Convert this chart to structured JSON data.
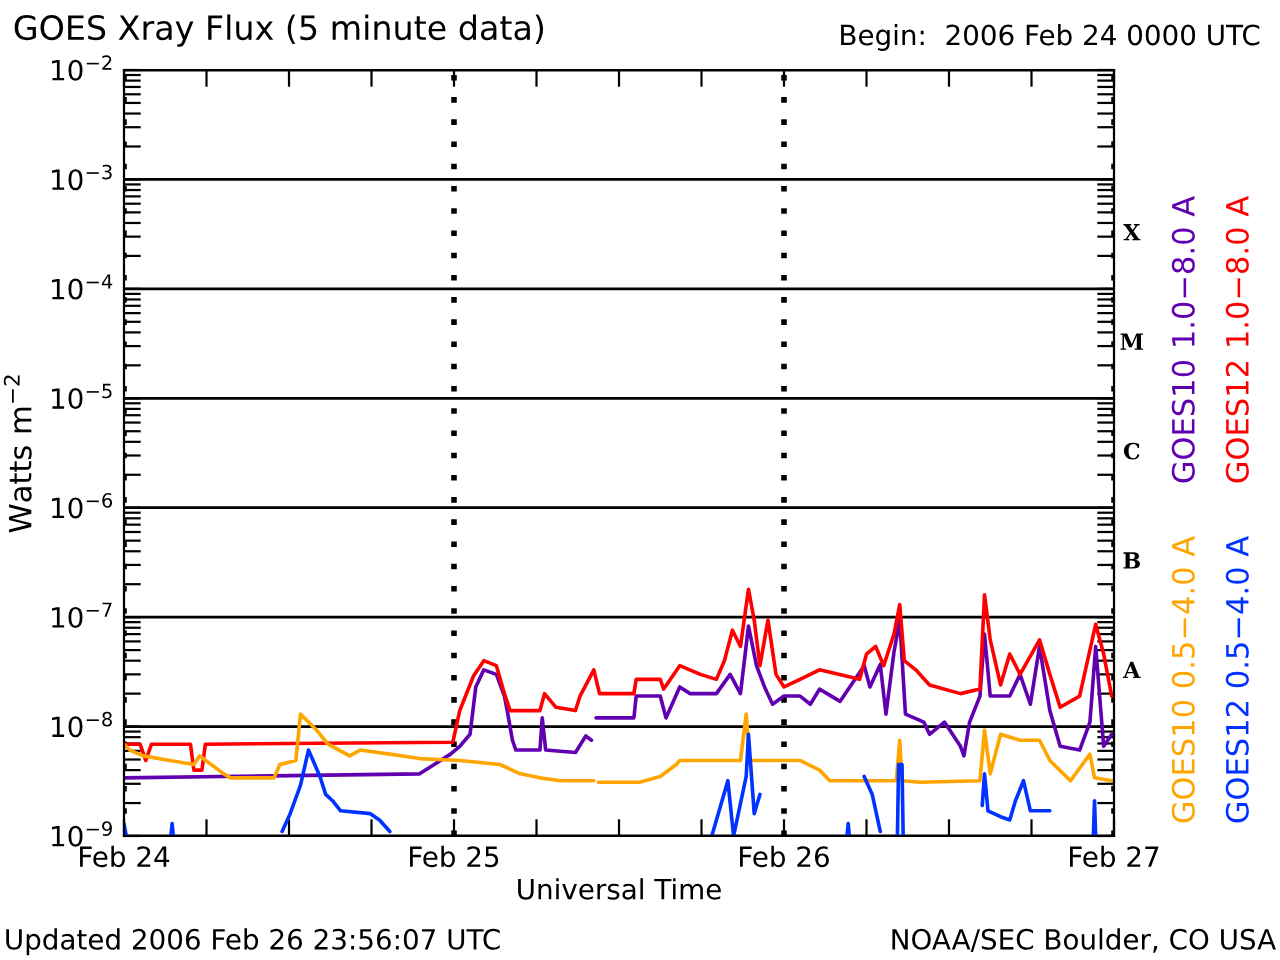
{
  "chart_data": {
    "type": "line",
    "title": "GOES Xray Flux (5 minute data)",
    "subtitle": "Begin:  2006 Feb 24 0000 UTC",
    "xlabel": "Universal Time",
    "ylabel": "Watts m$^{−2}$",
    "annotations": [
      "Updated 2006 Feb 26 23:56:07 UTC",
      "NOAA/SEC Boulder, CO USA",
      "A",
      "B",
      "C",
      "M",
      "X"
    ],
    "log": true,
    "grid": true,
    "legend": "right",
    "line_style": "solid",
    "marker": "none",
    "xlim": [
      "2006-02-24T00:00",
      "2006-02-27T00:00"
    ],
    "xticks": [
      {
        "value": "2006-02-24T00:00",
        "label": "Feb 24"
      },
      {
        "value": "2006-02-24T06:00",
        "label": null
      },
      {
        "value": "2006-02-24T12:00",
        "label": null
      },
      {
        "value": "2006-02-24T18:00",
        "label": null
      },
      {
        "value": "2006-02-25T00:00",
        "label": "Feb 25"
      },
      {
        "value": "2006-02-25T06:00",
        "label": null
      },
      {
        "value": "2006-02-25T12:00",
        "label": null
      },
      {
        "value": "2006-02-25T18:00",
        "label": null
      },
      {
        "value": "2006-02-26T00:00",
        "label": "Feb 26"
      },
      {
        "value": "2006-02-26T06:00",
        "label": null
      },
      {
        "value": "2006-02-26T12:00",
        "label": null
      },
      {
        "value": "2006-02-26T18:00",
        "label": null
      },
      {
        "value": "2006-02-27T00:00",
        "label": "Feb 27"
      }
    ],
    "ylim": [
      1e-09,
      0.01
    ],
    "yticks": [
      {
        "value": 1e-09,
        "label": "10$^{−9}$"
      },
      {
        "value": 1e-08,
        "label": "10$^{−8}$"
      },
      {
        "value": 1e-07,
        "label": "10$^{−7}$"
      },
      {
        "value": 1e-06,
        "label": "10$^{−6}$"
      },
      {
        "value": 1e-05,
        "label": "10$^{−5}$"
      },
      {
        "value": 0.0001,
        "label": "10$^{−4}$"
      },
      {
        "value": 0.001,
        "label": "10$^{−3}$"
      },
      {
        "value": 0.01,
        "label": "10$^{−2}$"
      },
      {
        "value": 2e-09,
        "label": null
      },
      {
        "value": 3e-09,
        "label": null
      },
      {
        "value": 4e-09,
        "label": null
      },
      {
        "value": 5e-09,
        "label": null
      },
      {
        "value": 6e-09,
        "label": null
      },
      {
        "value": 7e-09,
        "label": null
      },
      {
        "value": 8e-09,
        "label": null
      },
      {
        "value": 9e-09,
        "label": null
      },
      {
        "value": 2e-08,
        "label": null
      },
      {
        "value": 3e-08,
        "label": null
      },
      {
        "value": 4e-08,
        "label": null
      },
      {
        "value": 5e-08,
        "label": null
      },
      {
        "value": 6e-08,
        "label": null
      },
      {
        "value": 7e-08,
        "label": null
      },
      {
        "value": 8e-08,
        "label": null
      },
      {
        "value": 9e-08,
        "label": null
      },
      {
        "value": 2e-07,
        "label": null
      },
      {
        "value": 3e-07,
        "label": null
      },
      {
        "value": 4e-07,
        "label": null
      },
      {
        "value": 5e-07,
        "label": null
      },
      {
        "value": 6e-07,
        "label": null
      },
      {
        "value": 7e-07,
        "label": null
      },
      {
        "value": 8e-07,
        "label": null
      },
      {
        "value": 9e-07,
        "label": null
      },
      {
        "value": 2e-06,
        "label": null
      },
      {
        "value": 3e-06,
        "label": null
      },
      {
        "value": 4e-06,
        "label": null
      },
      {
        "value": 5e-06,
        "label": null
      },
      {
        "value": 6e-06,
        "label": null
      },
      {
        "value": 7e-06,
        "label": null
      },
      {
        "value": 8e-06,
        "label": null
      },
      {
        "value": 9e-06,
        "label": null
      },
      {
        "value": 2e-05,
        "label": null
      },
      {
        "value": 3e-05,
        "label": null
      },
      {
        "value": 4e-05,
        "label": null
      },
      {
        "value": 5e-05,
        "label": null
      },
      {
        "value": 6e-05,
        "label": null
      },
      {
        "value": 7e-05,
        "label": null
      },
      {
        "value": 8e-05,
        "label": null
      },
      {
        "value": 9e-05,
        "label": null
      },
      {
        "value": 0.0002,
        "label": null
      },
      {
        "value": 0.0003,
        "label": null
      },
      {
        "value": 0.0004,
        "label": null
      },
      {
        "value": 0.0005,
        "label": null
      },
      {
        "value": 0.0006,
        "label": null
      },
      {
        "value": 0.0007,
        "label": null
      },
      {
        "value": 0.0008,
        "label": null
      },
      {
        "value": 0.0009,
        "label": null
      },
      {
        "value": 0.002,
        "label": null
      },
      {
        "value": 0.003,
        "label": null
      },
      {
        "value": 0.004,
        "label": null
      },
      {
        "value": 0.005,
        "label": null
      },
      {
        "value": 0.006,
        "label": null
      },
      {
        "value": 0.007,
        "label": null
      },
      {
        "value": 0.008,
        "label": null
      },
      {
        "value": 0.009,
        "label": null
      }
    ],
    "series": [
      {
        "name": "GOES10 1.0−8.0 A",
        "color": "#6000b0",
        "x": [
          "2006-02-24T00:00",
          "2006-02-24T21:30",
          "2006-02-24T23:45",
          "2006-02-25T00:25",
          "2006-02-25T01:10",
          "2006-02-25T01:35",
          "2006-02-25T02:10",
          "2006-02-25T03:05",
          "2006-02-25T03:40",
          "2006-02-25T03:55",
          "2006-02-25T04:15",
          "2006-02-25T04:30",
          "2006-02-25T06:15",
          "2006-02-25T06:25",
          "2006-02-25T06:40",
          "2006-02-25T08:50",
          "2006-02-25T09:35",
          "2006-02-25T10:00",
          "2006-02-25T10:10",
          "2006-02-25T10:20",
          "2006-02-25T13:05",
          "2006-02-25T13:15",
          "2006-02-25T15:00",
          "2006-02-25T15:25",
          "2006-02-25T16:25",
          "2006-02-25T17:10",
          "2006-02-25T19:05",
          "2006-02-25T20:05",
          "2006-02-25T20:50",
          "2006-02-25T21:25",
          "2006-02-25T22:00",
          "2006-02-25T22:35",
          "2006-02-25T23:10",
          "2006-02-26T00:00",
          "2006-02-26T01:10",
          "2006-02-26T01:55",
          "2006-02-26T02:35",
          "2006-02-26T04:05",
          "2006-02-26T05:50",
          "2006-02-26T06:15",
          "2006-02-26T07:00",
          "2006-02-26T07:25",
          "2006-02-26T08:00",
          "2006-02-26T08:25",
          "2006-02-26T08:50",
          "2006-02-26T10:10",
          "2006-02-26T10:35",
          "2006-02-26T11:40",
          "2006-02-26T12:50",
          "2006-02-26T13:05",
          "2006-02-26T13:30",
          "2006-02-26T14:15",
          "2006-02-26T14:35",
          "2006-02-26T15:00",
          "2006-02-26T16:25",
          "2006-02-26T17:10",
          "2006-02-26T17:55",
          "2006-02-26T18:35",
          "2006-02-26T19:20",
          "2006-02-26T20:05",
          "2006-02-26T21:30",
          "2006-02-26T22:15",
          "2006-02-26T22:40",
          "2006-02-26T23:15",
          "2006-02-26T23:50"
        ],
        "values": [
          3.4e-09,
          3.7e-09,
          5.6e-09,
          6.6e-09,
          8.5e-09,
          2.3e-08,
          3.3e-08,
          3e-08,
          1.9e-08,
          1.3e-08,
          7.5e-09,
          6.1e-09,
          6.1e-09,
          1.2e-08,
          6.1e-09,
          5.8e-09,
          8.2e-09,
          7.5e-09,
          null,
          1.2e-08,
          1.2e-08,
          1.9e-08,
          1.9e-08,
          1.2e-08,
          2.3e-08,
          2e-08,
          2e-08,
          3e-08,
          2e-08,
          8.3e-08,
          3.6e-08,
          2.3e-08,
          1.6e-08,
          1.9e-08,
          1.9e-08,
          1.6e-08,
          2.2e-08,
          1.7e-08,
          3.6e-08,
          2.3e-08,
          3.7e-08,
          1.3e-08,
          4.8e-08,
          9.4e-08,
          1.3e-08,
          1.1e-08,
          8.5e-09,
          1.1e-08,
          6.6e-09,
          5.4e-09,
          1.1e-08,
          1.9e-08,
          7e-08,
          1.9e-08,
          1.9e-08,
          3e-08,
          1.6e-08,
          5.4e-08,
          1.4e-08,
          6.6e-09,
          6.1e-09,
          1.1e-08,
          5.4e-08,
          6.6e-09,
          8.5e-09
        ]
      },
      {
        "name": "GOES12 1.0−8.0 A",
        "color": "#ff0000",
        "x": [
          "2006-02-24T00:00",
          "2006-02-24T01:10",
          "2006-02-24T01:35",
          "2006-02-24T02:00",
          "2006-02-24T04:50",
          "2006-02-24T05:05",
          "2006-02-24T05:40",
          "2006-02-24T05:55",
          "2006-02-24T23:55",
          "2006-02-25T00:25",
          "2006-02-25T01:25",
          "2006-02-25T02:10",
          "2006-02-25T03:05",
          "2006-02-25T03:40",
          "2006-02-25T04:05",
          "2006-02-25T06:15",
          "2006-02-25T06:35",
          "2006-02-25T07:25",
          "2006-02-25T08:50",
          "2006-02-25T09:10",
          "2006-02-25T10:10",
          "2006-02-25T10:35",
          "2006-02-25T13:05",
          "2006-02-25T13:15",
          "2006-02-25T15:00",
          "2006-02-25T15:15",
          "2006-02-25T16:25",
          "2006-02-25T17:55",
          "2006-02-25T19:05",
          "2006-02-25T19:40",
          "2006-02-25T20:15",
          "2006-02-25T20:50",
          "2006-02-25T21:25",
          "2006-02-25T21:50",
          "2006-02-25T22:15",
          "2006-02-25T22:50",
          "2006-02-25T23:25",
          "2006-02-26T00:00",
          "2006-02-26T01:10",
          "2006-02-26T02:35",
          "2006-02-26T05:30",
          "2006-02-26T06:00",
          "2006-02-26T06:40",
          "2006-02-26T07:15",
          "2006-02-26T08:00",
          "2006-02-26T08:25",
          "2006-02-26T08:45",
          "2006-02-26T09:35",
          "2006-02-26T10:35",
          "2006-02-26T12:50",
          "2006-02-26T14:15",
          "2006-02-26T14:35",
          "2006-02-26T15:00",
          "2006-02-26T15:45",
          "2006-02-26T16:25",
          "2006-02-26T17:10",
          "2006-02-26T18:35",
          "2006-02-26T19:20",
          "2006-02-26T20:05",
          "2006-02-26T21:30",
          "2006-02-26T22:40",
          "2006-02-26T23:15",
          "2006-02-26T23:50"
        ],
        "values": [
          6.9e-09,
          6.9e-09,
          4.9e-09,
          6.9e-09,
          6.9e-09,
          4e-09,
          4e-09,
          6.9e-09,
          7.2e-09,
          1.4e-08,
          2.9e-08,
          4e-08,
          3.6e-08,
          2e-08,
          1.4e-08,
          1.4e-08,
          2e-08,
          1.5e-08,
          1.4e-08,
          1.9e-08,
          3.3e-08,
          2e-08,
          2e-08,
          2.7e-08,
          2.7e-08,
          2.2e-08,
          3.6e-08,
          3e-08,
          2.7e-08,
          4e-08,
          7.6e-08,
          5.4e-08,
          1.8e-07,
          9.4e-08,
          3.6e-08,
          9.4e-08,
          3e-08,
          2.3e-08,
          2.7e-08,
          3.3e-08,
          2.7e-08,
          4.6e-08,
          5.4e-08,
          3.6e-08,
          7e-08,
          1.3e-07,
          4e-08,
          3.3e-08,
          2.4e-08,
          2e-08,
          2.2e-08,
          1.6e-07,
          6.2e-08,
          2.4e-08,
          4.6e-08,
          3e-08,
          6.2e-08,
          3e-08,
          1.5e-08,
          1.9e-08,
          8.6e-08,
          4.6e-08,
          1.9e-08
        ]
      },
      {
        "name": "GOES10 0.5−4.0 A",
        "color": "#ffa500",
        "x": [
          "2006-02-24T00:00",
          "2006-02-24T00:25",
          "2006-02-24T01:25",
          "2006-02-24T03:20",
          "2006-02-24T05:05",
          "2006-02-24T05:30",
          "2006-02-24T07:15",
          "2006-02-24T07:45",
          "2006-02-24T10:55",
          "2006-02-24T11:20",
          "2006-02-24T12:30",
          "2006-02-24T12:50",
          "2006-02-24T13:25",
          "2006-02-24T14:00",
          "2006-02-24T14:50",
          "2006-02-24T16:25",
          "2006-02-24T17:10",
          "2006-02-24T19:20",
          "2006-02-24T21:30",
          "2006-02-25T00:25",
          "2006-02-25T03:20",
          "2006-02-25T04:50",
          "2006-02-25T06:15",
          "2006-02-25T07:45",
          "2006-02-25T10:10",
          "2006-02-25T10:20",
          "2006-02-25T10:30",
          "2006-02-25T13:30",
          "2006-02-25T15:00",
          "2006-02-25T16:10",
          "2006-02-25T16:25",
          "2006-02-25T20:50",
          "2006-02-25T21:15",
          "2006-02-25T21:30",
          "2006-02-26T00:25",
          "2006-02-26T01:10",
          "2006-02-26T02:35",
          "2006-02-26T03:20",
          "2006-02-26T08:10",
          "2006-02-26T08:25",
          "2006-02-26T08:35",
          "2006-02-26T09:55",
          "2006-02-26T14:15",
          "2006-02-26T14:35",
          "2006-02-26T15:00",
          "2006-02-26T15:45",
          "2006-02-26T17:10",
          "2006-02-26T18:35",
          "2006-02-26T19:20",
          "2006-02-26T20:50",
          "2006-02-26T22:15",
          "2006-02-26T22:35",
          "2006-02-26T23:50"
        ],
        "values": [
          6.9e-09,
          6.1e-09,
          5.4e-09,
          4.9e-09,
          4.5e-09,
          5.4e-09,
          3.7e-09,
          3.4e-09,
          3.4e-09,
          4.5e-09,
          4.9e-09,
          1.3e-08,
          1.1e-08,
          9.3e-09,
          6.9e-09,
          5.4e-09,
          6.1e-09,
          5.6e-09,
          5.1e-09,
          4.9e-09,
          4.5e-09,
          3.7e-09,
          3.4e-09,
          3.2e-09,
          3.2e-09,
          null,
          3.1e-09,
          3.1e-09,
          3.5e-09,
          4.5e-09,
          4.9e-09,
          4.9e-09,
          1.3e-08,
          4.9e-09,
          4.9e-09,
          4.9e-09,
          4e-09,
          3.2e-09,
          3.2e-09,
          7.5e-09,
          3.2e-09,
          3.1e-09,
          3.2e-09,
          9.3e-09,
          3.7e-09,
          8.5e-09,
          7.5e-09,
          7.5e-09,
          4.9e-09,
          3.2e-09,
          5.6e-09,
          3.4e-09,
          3.2e-09
        ]
      },
      {
        "name": "GOES12 0.5−4.0 A",
        "color": "#0033ff",
        "x": [
          "2006-02-24T00:00",
          "2006-02-24T00:10",
          "2006-02-24T00:15",
          "2006-02-24T03:25",
          "2006-02-24T03:30",
          "2006-02-24T03:35",
          "2006-02-24T03:45",
          "2006-02-24T11:20",
          "2006-02-24T11:30",
          "2006-02-24T12:05",
          "2006-02-24T12:50",
          "2006-02-24T13:25",
          "2006-02-24T14:15",
          "2006-02-24T14:40",
          "2006-02-24T15:10",
          "2006-02-24T15:45",
          "2006-02-24T17:55",
          "2006-02-24T18:35",
          "2006-02-24T19:20",
          "2006-02-24T19:40",
          "2006-02-25T18:45",
          "2006-02-25T19:55",
          "2006-02-25T20:20",
          "2006-02-25T21:15",
          "2006-02-25T21:25",
          "2006-02-25T21:50",
          "2006-02-25T22:15",
          "2006-02-25T22:40",
          "2006-02-26T04:35",
          "2006-02-26T04:40",
          "2006-02-26T04:45",
          "2006-02-26T04:50",
          "2006-02-26T05:50",
          "2006-02-26T06:25",
          "2006-02-26T07:00",
          "2006-02-26T07:10",
          "2006-02-26T08:15",
          "2006-02-26T08:20",
          "2006-02-26T08:35",
          "2006-02-26T08:40",
          "2006-02-26T08:45",
          "2006-02-26T14:25",
          "2006-02-26T14:35",
          "2006-02-26T14:50",
          "2006-02-26T15:45",
          "2006-02-26T16:25",
          "2006-02-26T16:50",
          "2006-02-26T17:25",
          "2006-02-26T17:55",
          "2006-02-26T19:20",
          "2006-02-26T19:30",
          "2006-02-26T22:30",
          "2006-02-26T22:35",
          "2006-02-26T22:40"
        ],
        "values": [
          1.3e-09,
          1e-09,
          null,
          1e-09,
          1.3e-09,
          1e-09,
          null,
          null,
          1.1e-09,
          1.6e-09,
          2.9e-09,
          6.1e-09,
          3.5e-09,
          2.4e-09,
          2.1e-09,
          1.7e-09,
          1.6e-09,
          1.4e-09,
          1.1e-09,
          null,
          1e-09,
          3.2e-09,
          1e-09,
          3.5e-09,
          8.5e-09,
          1.6e-09,
          2.4e-09,
          null,
          1e-09,
          1.3e-09,
          1e-09,
          null,
          3.5e-09,
          2.4e-09,
          1.1e-09,
          null,
          1e-09,
          4.5e-09,
          4.5e-09,
          1e-09,
          null,
          1.9e-09,
          3.7e-09,
          1.7e-09,
          1.5e-09,
          1.4e-09,
          2.1e-09,
          3.2e-09,
          1.7e-09,
          1.7e-09,
          null,
          1e-09,
          2.1e-09,
          1e-09
        ]
      }
    ]
  }
}
